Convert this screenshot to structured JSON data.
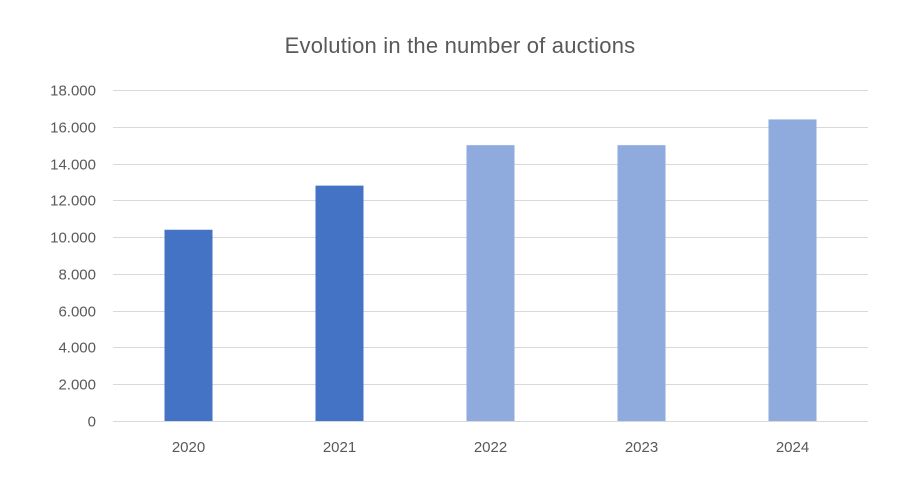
{
  "chart_data": {
    "type": "bar",
    "title": "Evolution in the number of auctions",
    "categories": [
      "2020",
      "2021",
      "2022",
      "2023",
      "2024"
    ],
    "values": [
      10400,
      12800,
      15000,
      15000,
      16400
    ],
    "bar_colors": [
      "#4472C4",
      "#4472C4",
      "#8FAADC",
      "#8FAADC",
      "#8FAADC"
    ],
    "xlabel": "",
    "ylabel": "",
    "ylim": [
      0,
      18000
    ],
    "yticks": [
      0,
      2000,
      4000,
      6000,
      8000,
      10000,
      12000,
      14000,
      16000,
      18000
    ],
    "ytick_labels": [
      "0",
      "2.000",
      "4.000",
      "6.000",
      "8.000",
      "10.000",
      "12.000",
      "14.000",
      "16.000",
      "18.000"
    ],
    "grid": true,
    "gridline_color": "#D9D9D9"
  }
}
